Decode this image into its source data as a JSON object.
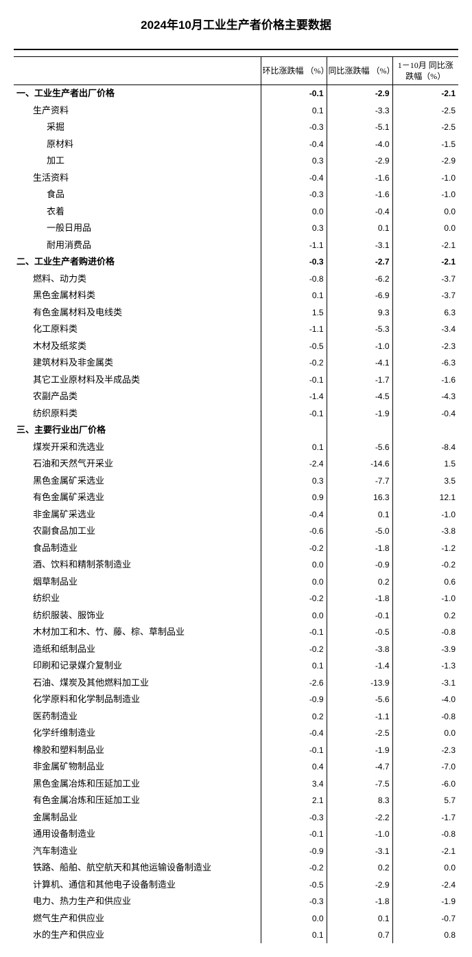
{
  "title": "2024年10月工业生产者价格主要数据",
  "columns": {
    "c1": "环比涨跌幅\n（%）",
    "c2": "同比涨跌幅\n（%）",
    "c3": "1－10月\n同比涨跌幅（%）"
  },
  "rows": [
    {
      "label": "一、工业生产者出厂价格",
      "v1": "-0.1",
      "v2": "-2.9",
      "v3": "-2.1",
      "bold": true,
      "indent": 0
    },
    {
      "label": "生产资料",
      "v1": "0.1",
      "v2": "-3.3",
      "v3": "-2.5",
      "indent": 1
    },
    {
      "label": "采掘",
      "v1": "-0.3",
      "v2": "-5.1",
      "v3": "-2.5",
      "indent": 2
    },
    {
      "label": "原材料",
      "v1": "-0.4",
      "v2": "-4.0",
      "v3": "-1.5",
      "indent": 2
    },
    {
      "label": "加工",
      "v1": "0.3",
      "v2": "-2.9",
      "v3": "-2.9",
      "indent": 2
    },
    {
      "label": "生活资料",
      "v1": "-0.4",
      "v2": "-1.6",
      "v3": "-1.0",
      "indent": 1
    },
    {
      "label": "食品",
      "v1": "-0.3",
      "v2": "-1.6",
      "v3": "-1.0",
      "indent": 2
    },
    {
      "label": "衣着",
      "v1": "0.0",
      "v2": "-0.4",
      "v3": "0.0",
      "indent": 2
    },
    {
      "label": "一般日用品",
      "v1": "0.3",
      "v2": "0.1",
      "v3": "0.0",
      "indent": 2
    },
    {
      "label": "耐用消费品",
      "v1": "-1.1",
      "v2": "-3.1",
      "v3": "-2.1",
      "indent": 2
    },
    {
      "label": "二、工业生产者购进价格",
      "v1": "-0.3",
      "v2": "-2.7",
      "v3": "-2.1",
      "bold": true,
      "indent": 0
    },
    {
      "label": "燃料、动力类",
      "v1": "-0.8",
      "v2": "-6.2",
      "v3": "-3.7",
      "indent": 1
    },
    {
      "label": "黑色金属材料类",
      "v1": "0.1",
      "v2": "-6.9",
      "v3": "-3.7",
      "indent": 1
    },
    {
      "label": "有色金属材料及电线类",
      "v1": "1.5",
      "v2": "9.3",
      "v3": "6.3",
      "indent": 1
    },
    {
      "label": "化工原料类",
      "v1": "-1.1",
      "v2": "-5.3",
      "v3": "-3.4",
      "indent": 1
    },
    {
      "label": "木材及纸浆类",
      "v1": "-0.5",
      "v2": "-1.0",
      "v3": "-2.3",
      "indent": 1
    },
    {
      "label": "建筑材料及非金属类",
      "v1": "-0.2",
      "v2": "-4.1",
      "v3": "-6.3",
      "indent": 1
    },
    {
      "label": "其它工业原材料及半成品类",
      "v1": "-0.1",
      "v2": "-1.7",
      "v3": "-1.6",
      "indent": 1
    },
    {
      "label": "农副产品类",
      "v1": "-1.4",
      "v2": "-4.5",
      "v3": "-4.3",
      "indent": 1
    },
    {
      "label": "纺织原料类",
      "v1": "-0.1",
      "v2": "-1.9",
      "v3": "-0.4",
      "indent": 1
    },
    {
      "label": "三、主要行业出厂价格",
      "v1": "",
      "v2": "",
      "v3": "",
      "bold": true,
      "indent": 0
    },
    {
      "label": "煤炭开采和洗选业",
      "v1": "0.1",
      "v2": "-5.6",
      "v3": "-8.4",
      "indent": 1
    },
    {
      "label": "石油和天然气开采业",
      "v1": "-2.4",
      "v2": "-14.6",
      "v3": "1.5",
      "indent": 1
    },
    {
      "label": "黑色金属矿采选业",
      "v1": "0.3",
      "v2": "-7.7",
      "v3": "3.5",
      "indent": 1
    },
    {
      "label": "有色金属矿采选业",
      "v1": "0.9",
      "v2": "16.3",
      "v3": "12.1",
      "indent": 1
    },
    {
      "label": "非金属矿采选业",
      "v1": "-0.4",
      "v2": "0.1",
      "v3": "-1.0",
      "indent": 1
    },
    {
      "label": "农副食品加工业",
      "v1": "-0.6",
      "v2": "-5.0",
      "v3": "-3.8",
      "indent": 1
    },
    {
      "label": "食品制造业",
      "v1": "-0.2",
      "v2": "-1.8",
      "v3": "-1.2",
      "indent": 1
    },
    {
      "label": "酒、饮料和精制茶制造业",
      "v1": "0.0",
      "v2": "-0.9",
      "v3": "-0.2",
      "indent": 1
    },
    {
      "label": "烟草制品业",
      "v1": "0.0",
      "v2": "0.2",
      "v3": "0.6",
      "indent": 1
    },
    {
      "label": "纺织业",
      "v1": "-0.2",
      "v2": "-1.8",
      "v3": "-1.0",
      "indent": 1
    },
    {
      "label": "纺织服装、服饰业",
      "v1": "0.0",
      "v2": "-0.1",
      "v3": "0.2",
      "indent": 1
    },
    {
      "label": "木材加工和木、竹、藤、棕、草制品业",
      "v1": "-0.1",
      "v2": "-0.5",
      "v3": "-0.8",
      "indent": 1
    },
    {
      "label": "造纸和纸制品业",
      "v1": "-0.2",
      "v2": "-3.8",
      "v3": "-3.9",
      "indent": 1
    },
    {
      "label": "印刷和记录媒介复制业",
      "v1": "0.1",
      "v2": "-1.4",
      "v3": "-1.3",
      "indent": 1
    },
    {
      "label": "石油、煤炭及其他燃料加工业",
      "v1": "-2.6",
      "v2": "-13.9",
      "v3": "-3.1",
      "indent": 1
    },
    {
      "label": "化学原料和化学制品制造业",
      "v1": "-0.9",
      "v2": "-5.6",
      "v3": "-4.0",
      "indent": 1
    },
    {
      "label": "医药制造业",
      "v1": "0.2",
      "v2": "-1.1",
      "v3": "-0.8",
      "indent": 1
    },
    {
      "label": "化学纤维制造业",
      "v1": "-0.4",
      "v2": "-2.5",
      "v3": "0.0",
      "indent": 1
    },
    {
      "label": "橡胶和塑料制品业",
      "v1": "-0.1",
      "v2": "-1.9",
      "v3": "-2.3",
      "indent": 1
    },
    {
      "label": "非金属矿物制品业",
      "v1": "0.4",
      "v2": "-4.7",
      "v3": "-7.0",
      "indent": 1
    },
    {
      "label": "黑色金属冶炼和压延加工业",
      "v1": "3.4",
      "v2": "-7.5",
      "v3": "-6.0",
      "indent": 1
    },
    {
      "label": "有色金属冶炼和压延加工业",
      "v1": "2.1",
      "v2": "8.3",
      "v3": "5.7",
      "indent": 1
    },
    {
      "label": "金属制品业",
      "v1": "-0.3",
      "v2": "-2.2",
      "v3": "-1.7",
      "indent": 1
    },
    {
      "label": "通用设备制造业",
      "v1": "-0.1",
      "v2": "-1.0",
      "v3": "-0.8",
      "indent": 1
    },
    {
      "label": "汽车制造业",
      "v1": "-0.9",
      "v2": "-3.1",
      "v3": "-2.1",
      "indent": 1
    },
    {
      "label": "铁路、船舶、航空航天和其他运输设备制造业",
      "v1": "-0.2",
      "v2": "0.2",
      "v3": "0.0",
      "indent": 1
    },
    {
      "label": "计算机、通信和其他电子设备制造业",
      "v1": "-0.5",
      "v2": "-2.9",
      "v3": "-2.4",
      "indent": 1
    },
    {
      "label": "电力、热力生产和供应业",
      "v1": "-0.3",
      "v2": "-1.8",
      "v3": "-1.9",
      "indent": 1
    },
    {
      "label": "燃气生产和供应业",
      "v1": "0.0",
      "v2": "0.1",
      "v3": "-0.7",
      "indent": 1
    },
    {
      "label": "水的生产和供应业",
      "v1": "0.1",
      "v2": "0.7",
      "v3": "0.8",
      "indent": 1
    }
  ],
  "style": {
    "background_color": "#ffffff",
    "text_color": "#000000",
    "border_color": "#000000",
    "font_size_body": 13,
    "font_size_title": 17
  }
}
